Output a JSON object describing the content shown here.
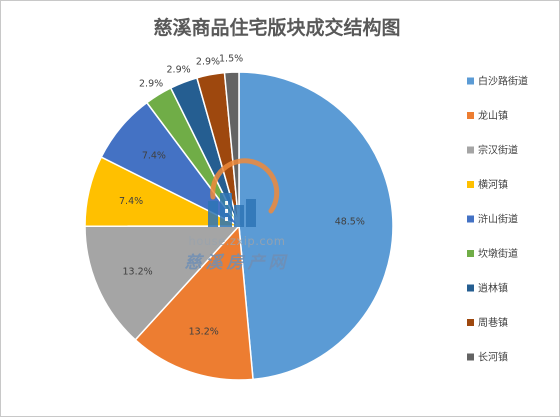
{
  "chart_data": {
    "type": "pie",
    "title": "慈溪商品住宅版块成交结构图",
    "categories": [
      "白沙路街道",
      "龙山镇",
      "宗汉街道",
      "横河镇",
      "浒山街道",
      "坎墩街道",
      "逍林镇",
      "周巷镇",
      "长河镇"
    ],
    "values": [
      48.5,
      13.2,
      13.2,
      7.4,
      7.4,
      2.9,
      2.9,
      2.9,
      1.5
    ],
    "value_labels": [
      "48.5%",
      "13.2%",
      "13.2%",
      "7.4%",
      "7.4%",
      "2.9%",
      "2.9%",
      "2.9%",
      "1.5%"
    ],
    "colors": [
      "#5b9bd5",
      "#ed7d31",
      "#a5a5a5",
      "#ffc000",
      "#4472c4",
      "#70ad47",
      "#255e91",
      "#9e480e",
      "#636363"
    ],
    "start_angle": "12 o'clock",
    "direction": "clockwise",
    "legend_position": "right"
  },
  "watermark": {
    "url": "house.zxip.com",
    "brand": "慈溪房产网"
  }
}
